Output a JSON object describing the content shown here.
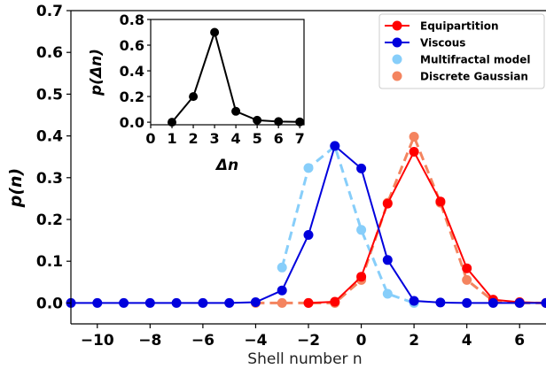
{
  "chart_data": [
    {
      "type": "line",
      "title": "",
      "xlabel": "Shell number n",
      "ylabel": "p(n)",
      "xlim": [
        -11,
        7
      ],
      "ylim": [
        -0.05,
        0.7
      ],
      "x_ticks": [
        -10,
        -8,
        -6,
        -4,
        -2,
        0,
        2,
        4,
        6
      ],
      "x_tick_labels": [
        "−10",
        "−8",
        "−6",
        "−4",
        "−2",
        "0",
        "2",
        "4",
        "6"
      ],
      "y_ticks": [
        0.0,
        0.1,
        0.2,
        0.3,
        0.4,
        0.5,
        0.6,
        0.7
      ],
      "y_tick_labels": [
        "0.0",
        "0.1",
        "0.2",
        "0.3",
        "0.4",
        "0.5",
        "0.6",
        "0.7"
      ],
      "legend_position": "top-right",
      "series": [
        {
          "name": "Equipartition",
          "color": "#ff0000",
          "style": "solid",
          "x": [
            -2,
            -1,
            0,
            1,
            2,
            3,
            4,
            5,
            6,
            7
          ],
          "y": [
            0.0,
            0.003,
            0.063,
            0.238,
            0.362,
            0.243,
            0.083,
            0.008,
            0.002,
            0.0
          ]
        },
        {
          "name": "Viscous",
          "color": "#0000dd",
          "style": "solid",
          "x": [
            -11,
            -10,
            -9,
            -8,
            -7,
            -6,
            -5,
            -4,
            -3,
            -2,
            -1,
            0,
            1,
            2,
            3,
            4,
            5,
            6,
            7
          ],
          "y": [
            0.0,
            0.0,
            0.0,
            0.0,
            0.0,
            0.0,
            0.0,
            0.002,
            0.03,
            0.163,
            0.376,
            0.322,
            0.103,
            0.005,
            0.001,
            0.0,
            0.0,
            0.0,
            0.0
          ]
        },
        {
          "name": "Multifractal model",
          "color": "#87cefa",
          "style": "dashed",
          "x": [
            -3,
            -2,
            -1,
            0,
            1,
            2
          ],
          "y": [
            0.085,
            0.323,
            0.375,
            0.175,
            0.022,
            0.0
          ]
        },
        {
          "name": "Discrete Gaussian",
          "color": "#f4845f",
          "style": "dashed",
          "x": [
            -4,
            -3,
            -2,
            -1,
            0,
            1,
            2,
            3,
            4,
            5,
            6,
            7
          ],
          "y": [
            0.0,
            0.0,
            0.0,
            0.0,
            0.055,
            0.24,
            0.398,
            0.24,
            0.055,
            0.005,
            0.0,
            0.0
          ]
        }
      ]
    },
    {
      "type": "line",
      "title": "",
      "xlabel": "Δn",
      "ylabel": "p(Δn)",
      "xlim": [
        0,
        7.2
      ],
      "ylim": [
        -0.02,
        0.8
      ],
      "x_ticks": [
        0,
        1,
        2,
        3,
        4,
        5,
        6,
        7
      ],
      "x_tick_labels": [
        "0",
        "1",
        "2",
        "3",
        "4",
        "5",
        "6",
        "7"
      ],
      "y_ticks": [
        0.0,
        0.2,
        0.4,
        0.6,
        0.8
      ],
      "y_tick_labels": [
        "0.0",
        "0.2",
        "0.4",
        "0.6",
        "0.8"
      ],
      "series": [
        {
          "color": "#000000",
          "x": [
            1,
            2,
            3,
            4,
            5,
            6,
            7
          ],
          "y": [
            0.0,
            0.2,
            0.7,
            0.085,
            0.015,
            0.005,
            0.002
          ]
        }
      ]
    }
  ]
}
